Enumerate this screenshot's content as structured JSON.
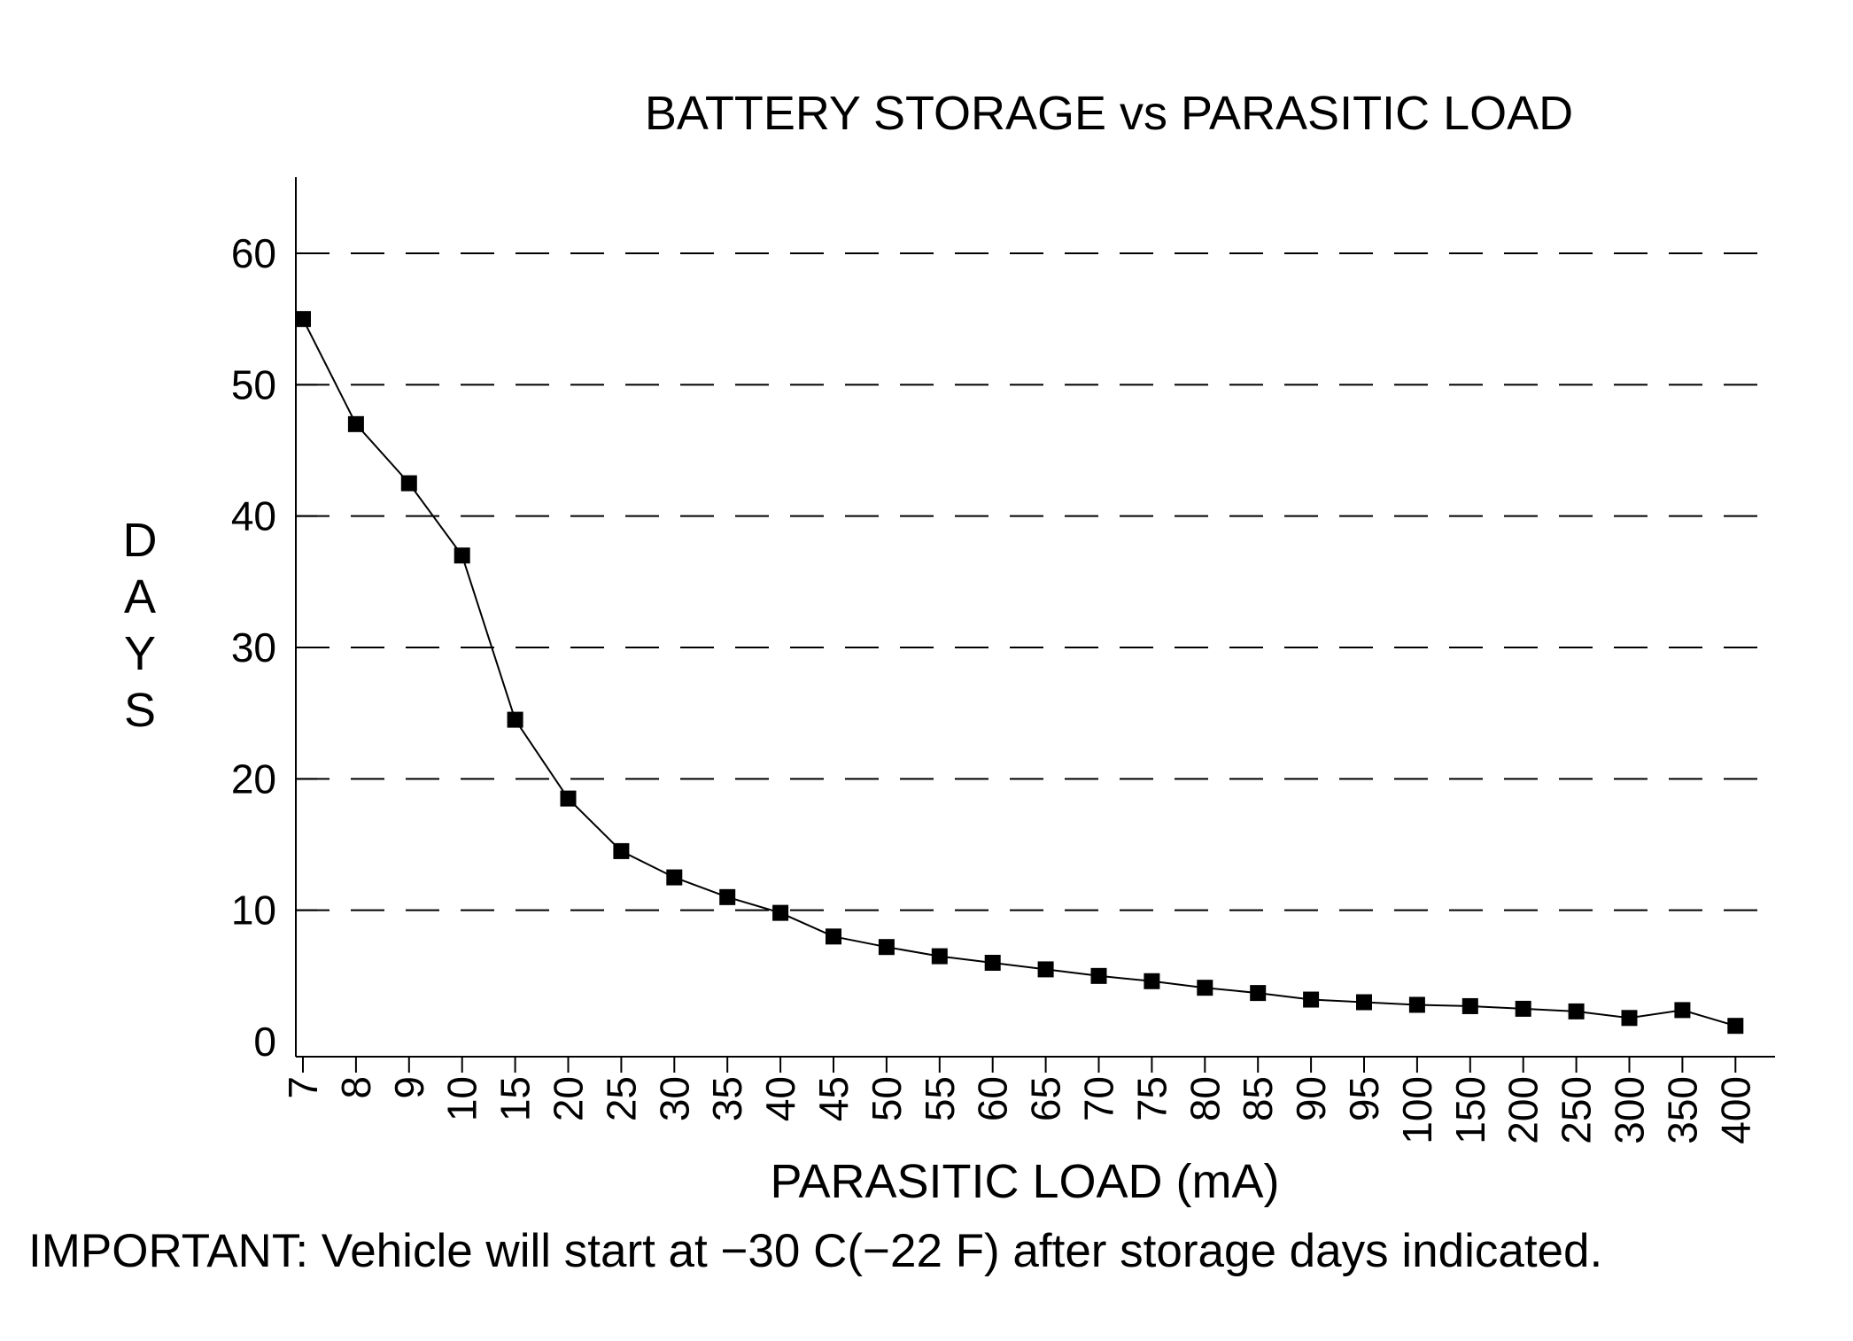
{
  "chart_data": {
    "type": "line",
    "title": "BATTERY STORAGE vs PARASITIC LOAD",
    "xlabel": "PARASITIC LOAD (mA)",
    "ylabel": "DAYS",
    "ylim": [
      0,
      65
    ],
    "yticks": [
      0,
      10,
      20,
      30,
      40,
      50,
      60
    ],
    "grid": "horizontal dashed",
    "categories": [
      "7",
      "8",
      "9",
      "10",
      "15",
      "20",
      "25",
      "30",
      "35",
      "40",
      "45",
      "50",
      "55",
      "60",
      "65",
      "70",
      "75",
      "80",
      "85",
      "90",
      "95",
      "100",
      "150",
      "200",
      "250",
      "300",
      "350",
      "400"
    ],
    "series": [
      {
        "values": [
          55,
          47,
          42.5,
          37,
          24.5,
          18.5,
          14.5,
          12.5,
          11,
          9.8,
          8,
          7.2,
          6.5,
          6,
          5.5,
          5,
          4.6,
          4.1,
          3.7,
          3.2,
          3,
          2.8,
          2.7,
          2.5,
          2.3,
          1.8,
          2.4,
          1.2
        ],
        "color": "#000000",
        "marker": "square"
      }
    ],
    "note": "IMPORTANT: Vehicle will start at −30 C(−22 F) after storage days indicated."
  }
}
